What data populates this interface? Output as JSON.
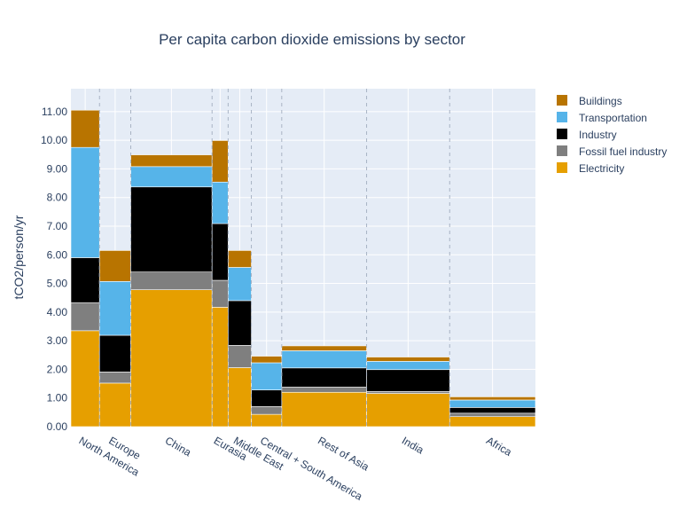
{
  "chart_data": {
    "type": "bar",
    "title": "Per capita carbon dioxide emissions by sector",
    "ylabel": "tCO2/person/yr",
    "xlabel": "",
    "ylim": [
      0,
      11.8
    ],
    "yticks": [
      "0.00",
      "1.00",
      "2.00",
      "3.00",
      "4.00",
      "5.00",
      "6.00",
      "7.00",
      "8.00",
      "9.00",
      "10.00",
      "11.00"
    ],
    "grid": true,
    "legend_position": "top-right",
    "categories": [
      "North America",
      "Europe",
      "China",
      "Eurasia",
      "Middle East",
      "Central + South America",
      "Rest of Asia",
      "India",
      "Africa"
    ],
    "relative_widths": [
      0.32,
      0.35,
      0.91,
      0.18,
      0.26,
      0.34,
      0.95,
      0.93,
      0.96
    ],
    "series": [
      {
        "name": "Electricity",
        "color": "#E69F00",
        "values": [
          3.35,
          1.52,
          4.78,
          4.17,
          2.06,
          0.43,
          1.2,
          1.16,
          0.35
        ]
      },
      {
        "name": "Fossil fuel industry",
        "color": "#7F7F7F",
        "values": [
          0.98,
          0.39,
          0.62,
          0.94,
          0.78,
          0.27,
          0.18,
          0.07,
          0.12
        ]
      },
      {
        "name": "Industry",
        "color": "#000000",
        "values": [
          1.57,
          1.28,
          2.97,
          1.98,
          1.56,
          0.58,
          0.67,
          0.76,
          0.2
        ]
      },
      {
        "name": "Transportation",
        "color": "#56B4E9",
        "values": [
          3.85,
          1.88,
          0.71,
          1.45,
          1.16,
          0.95,
          0.6,
          0.29,
          0.26
        ]
      },
      {
        "name": "Buildings",
        "color": "#B87400",
        "values": [
          1.3,
          1.08,
          0.41,
          1.45,
          0.59,
          0.23,
          0.17,
          0.15,
          0.11
        ]
      }
    ]
  }
}
